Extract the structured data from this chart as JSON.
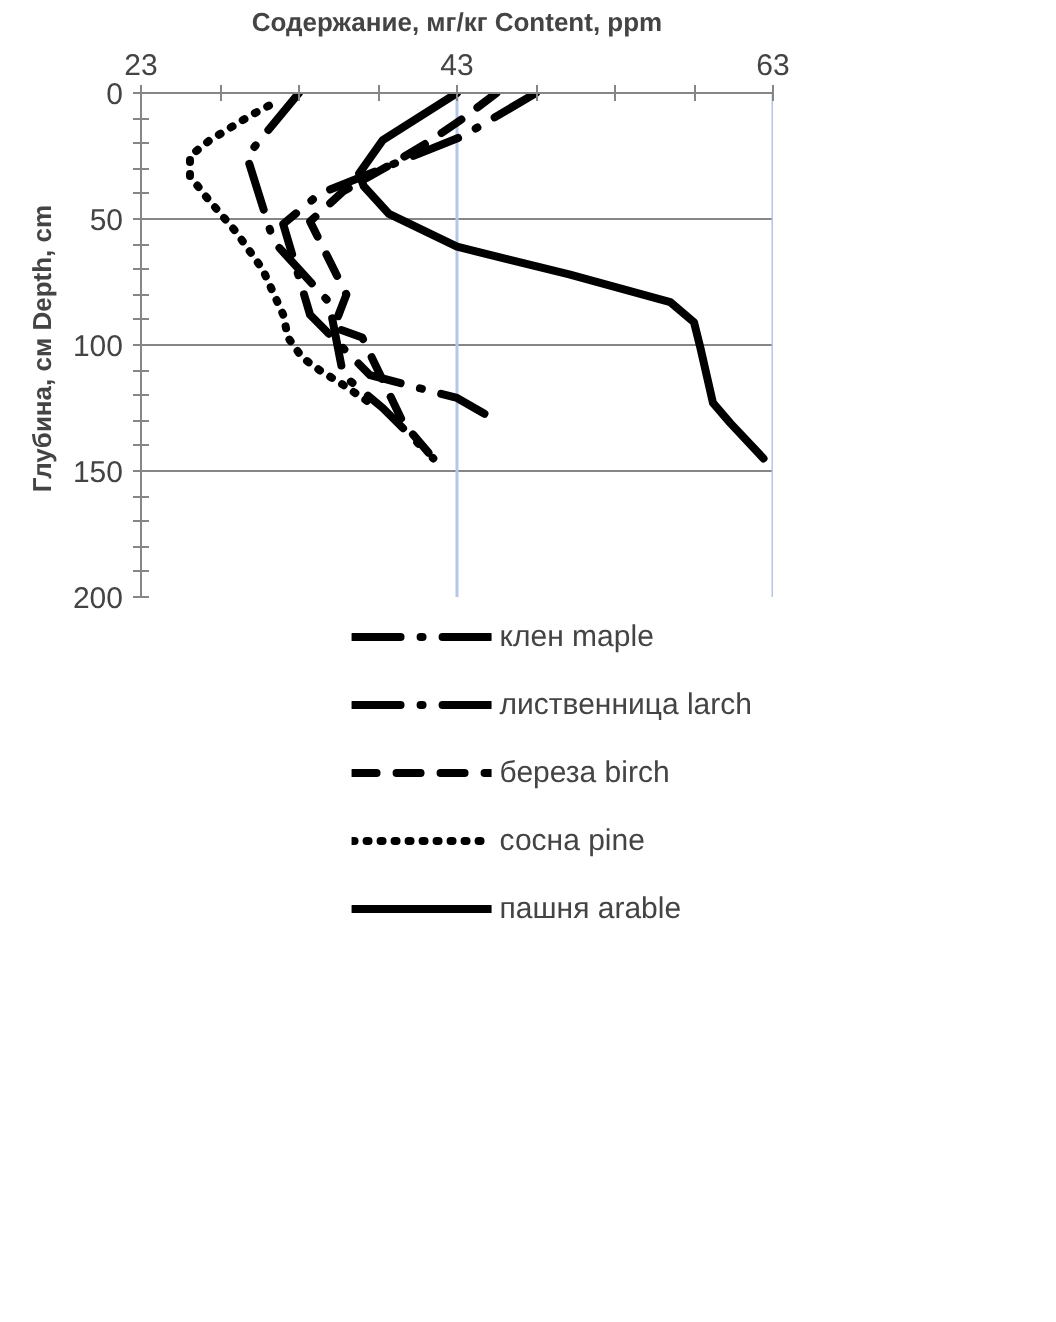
{
  "chart_data": {
    "type": "line",
    "xlabel": "Содержание, мг/кг Content, ppm",
    "ylabel": "Глубина, см Depth,  cm",
    "xlim": [
      23,
      63
    ],
    "ylim": [
      200,
      0
    ],
    "xticks": [
      23,
      {
        "value": 28,
        "label": null
      },
      {
        "value": 33,
        "label": null
      },
      {
        "value": 38,
        "label": null
      },
      43,
      {
        "value": 48,
        "label": null
      },
      {
        "value": 53,
        "label": null
      },
      {
        "value": 58,
        "label": null
      },
      63
    ],
    "yticks": [
      0,
      {
        "value": 10,
        "label": null
      },
      {
        "value": 20,
        "label": null
      },
      {
        "value": 30,
        "label": null
      },
      {
        "value": 40,
        "label": null
      },
      50,
      {
        "value": 60,
        "label": null
      },
      {
        "value": 70,
        "label": null
      },
      {
        "value": 80,
        "label": null
      },
      {
        "value": 90,
        "label": null
      },
      100,
      {
        "value": 110,
        "label": null
      },
      {
        "value": 120,
        "label": null
      },
      {
        "value": 130,
        "label": null
      },
      {
        "value": 140,
        "label": null
      },
      150,
      {
        "value": 160,
        "label": null
      },
      {
        "value": 170,
        "label": null
      },
      {
        "value": 180,
        "label": null
      },
      {
        "value": 190,
        "label": null
      },
      200
    ],
    "grid": "y",
    "legend": "bottom",
    "ref_lines": [
      {
        "axis": "x",
        "value": 43,
        "label": null,
        "color": "#b4c7e7"
      },
      {
        "axis": "x",
        "value": 63,
        "label": null,
        "color": "#b4c7e7"
      }
    ],
    "series": [
      {
        "name": "клен maple",
        "color": "#000000",
        "line_style": "dashdot",
        "x": [
          33,
          29.7,
          31.4,
          34.9,
          35.8,
          38.3,
          41.5
        ],
        "values": [
          0,
          25,
          59,
          83,
          112,
          125,
          145
        ]
      },
      {
        "name": "лиственница larch",
        "color": "#000000",
        "line_style": "dashdot",
        "x": [
          48,
          43.4,
          34.3,
          32,
          33.7,
          37.5,
          43,
          45.5
        ],
        "values": [
          0,
          17,
          40,
          52,
          88,
          112,
          121,
          130
        ]
      },
      {
        "name": "береза birch",
        "color": "#000000",
        "line_style": "dashed",
        "x": [
          45.5,
          43.4,
          41.3,
          39.2,
          35.8,
          33.7,
          36,
          35.2,
          37,
          39.6,
          41.5
        ],
        "values": [
          0,
          10,
          19,
          27,
          39,
          51,
          80,
          93,
          97,
          131,
          145
        ]
      },
      {
        "name": "сосна pine",
        "color": "#000000",
        "line_style": "dotted",
        "x": [
          31.1,
          29.9,
          27.3,
          26.1,
          26.1,
          27.1,
          29,
          30.7,
          32,
          32.3,
          33.2,
          34.3,
          35.6,
          37.5
        ],
        "values": [
          5,
          9,
          19,
          25,
          33,
          41,
          55,
          70,
          88,
          97,
          105,
          110,
          115,
          123
        ]
      },
      {
        "name": "пашня arable",
        "color": "#000000",
        "line_style": "solid",
        "x": [
          43,
          38.3,
          36.8,
          37.1,
          38.7,
          43,
          50.1,
          56.5,
          58,
          58.4,
          59.2,
          60.3,
          62.4
        ],
        "values": [
          0,
          18.7,
          32,
          37,
          48,
          61,
          72,
          83,
          91,
          101,
          123,
          131,
          145
        ]
      }
    ]
  }
}
